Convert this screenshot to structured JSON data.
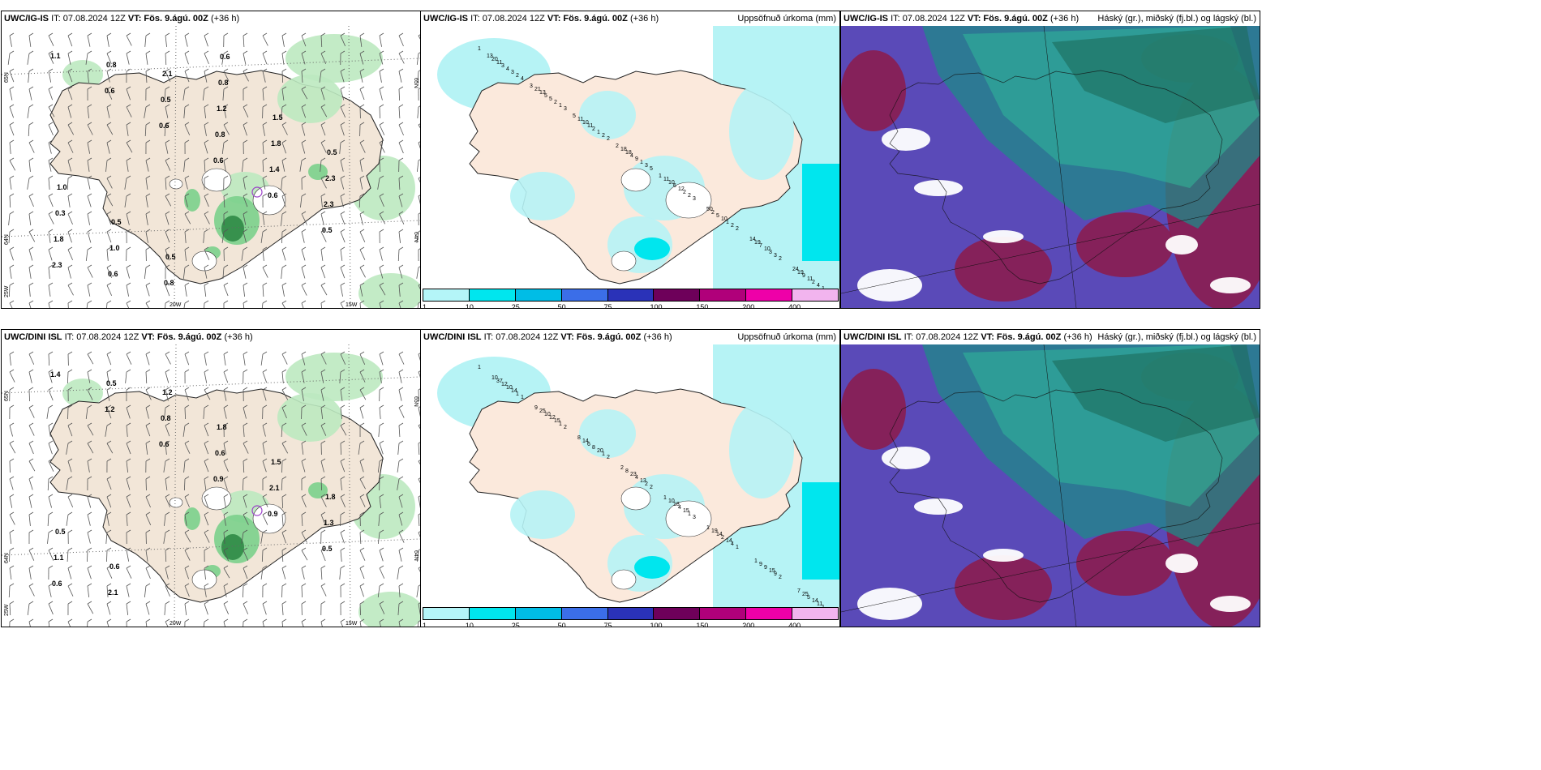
{
  "panels": [
    {
      "model": "UWC/IG-IS",
      "it": "IT: 07.08.2024 12Z",
      "vt_label": "VT:",
      "vt": "Fös. 9.ágú. 00Z",
      "lead": "(+36 h)",
      "right": "",
      "lat_labels": [
        "65N",
        "64N"
      ],
      "lon_labels": [
        "25W",
        "20W",
        "15W"
      ],
      "values": [
        "1.1",
        "0.6",
        "0.6",
        "0.6",
        "0.6",
        "0.5",
        "2.3",
        "0.8",
        "0.5",
        "0.8",
        "1.4",
        "2.3",
        "1.8",
        "0.6",
        "2.1",
        "1.2",
        "1.8",
        "2.3",
        "0.3",
        "1.0",
        "0.8",
        "0.8",
        "1.5",
        "0.5",
        "1.0",
        "0.5",
        "0.5",
        "0.6"
      ]
    },
    {
      "model": "UWC/IG-IS",
      "it": "IT: 07.08.2024 12Z",
      "vt_label": "VT:",
      "vt": "Fös. 9.ágú. 00Z",
      "lead": "(+36 h)",
      "right": "Uppsöfnuð úrkoma (mm)",
      "values": [
        "1",
        "4",
        "3",
        "2",
        "5",
        "3",
        "2",
        "2",
        "1",
        "2",
        "1",
        "2",
        "3",
        "2",
        "2",
        "3",
        "4",
        "3",
        "2",
        "1",
        "1",
        "2",
        "1",
        "3",
        "2",
        "4",
        "5",
        "2",
        "9",
        "12",
        "10",
        "10",
        "11",
        "3",
        "5",
        "11",
        "4",
        "6",
        "5",
        "7",
        "9",
        "11",
        "13",
        "10",
        "18",
        "10",
        "2",
        "19",
        "19",
        "20",
        "21",
        "11",
        "18",
        "11",
        "50",
        "14",
        "24",
        "13",
        "3",
        "5",
        "2",
        "1"
      ]
    },
    {
      "model": "UWC/IG-IS",
      "it": "IT: 07.08.2024 12Z",
      "vt_label": "VT:",
      "vt": "Fös. 9.ágú. 00Z",
      "lead": "(+36 h)",
      "right": "Háský (gr.), miðský (fj.bl.) og lágský (bl.)"
    },
    {
      "model": "UWC/DINI ISL",
      "it": "IT: 07.08.2024 12Z",
      "vt_label": "VT:",
      "vt": "Fös. 9.ágú. 00Z",
      "lead": "(+36 h)",
      "right": "",
      "lat_labels": [
        "65N",
        "64N"
      ],
      "lon_labels": [
        "25W",
        "20W",
        "15W"
      ],
      "values": [
        "1.4",
        "1.2",
        "0.6",
        "0.9",
        "0.9",
        "0.5",
        "0.6",
        "0.5",
        "0.8",
        "0.6",
        "2.1",
        "1.3",
        "1.1",
        "2.1",
        "1.2",
        "1.8",
        "1.5",
        "1.8",
        "0.5",
        "0.6"
      ]
    },
    {
      "model": "UWC/DINI ISL",
      "it": "IT: 07.08.2024 12Z",
      "vt_label": "VT:",
      "vt": "Fös. 9.ágú. 00Z",
      "lead": "(+36 h)",
      "right": "Uppsöfnuð úrkoma (mm)",
      "values": [
        "1",
        "1",
        "2",
        "2",
        "2",
        "3",
        "1",
        "2",
        "1",
        "1",
        "1",
        "1",
        "2",
        "1",
        "4",
        "9",
        "11",
        "14",
        "15",
        "20",
        "13",
        "15",
        "14",
        "15",
        "14",
        "10",
        "12",
        "8",
        "4",
        "4",
        "2",
        "9",
        "5",
        "12",
        "10",
        "6",
        "23",
        "18",
        "14",
        "9",
        "25",
        "37",
        "25",
        "14",
        "8",
        "10",
        "19",
        "1",
        "7",
        "10",
        "9",
        "8",
        "2",
        "1",
        "1"
      ]
    },
    {
      "model": "UWC/DINI ISL",
      "it": "IT: 07.08.2024 12Z",
      "vt_label": "VT:",
      "vt": "Fös. 9.ágú. 00Z",
      "lead": "(+36 h)",
      "right": "Háský (gr.), miðský (fj.bl.) og lágský (bl.)"
    }
  ],
  "legend": {
    "ticks": [
      "1",
      "10",
      "25",
      "50",
      "75",
      "100",
      "150",
      "200",
      "400"
    ],
    "colors": [
      "#b4f5f8",
      "#00e6ee",
      "#00bde6",
      "#3b6ee8",
      "#2a32b8",
      "#6e005a",
      "#b0007a",
      "#ee00a8",
      "#f2b4ee"
    ]
  },
  "colors": {
    "land": "#f2e6d8",
    "land_precip": "#fbe9dc",
    "light_green": "#bde9c0",
    "green": "#7bd08c",
    "dark_green": "#2f8a46",
    "cyan": "#b6f3f5",
    "purple": "#9a40c8"
  }
}
